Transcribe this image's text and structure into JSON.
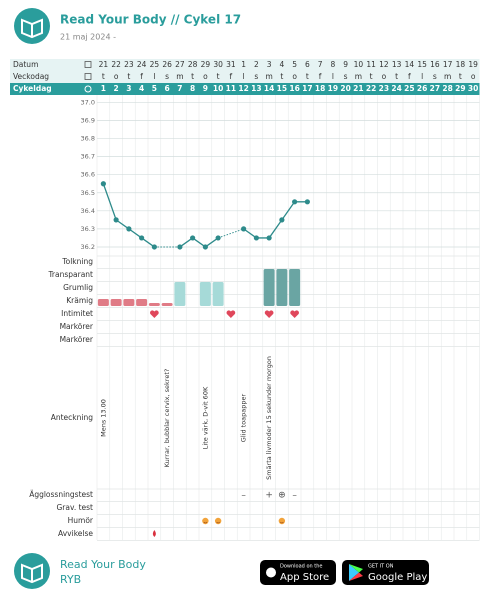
{
  "header": {
    "title": "Read Your Body // Cykel 17",
    "subtitle": "21 maj 2024 -"
  },
  "table": {
    "row_labels": {
      "date": "Datum",
      "weekday": "Veckodag",
      "cycle_day": "Cykeldag"
    },
    "dates": [
      21,
      22,
      23,
      24,
      25,
      26,
      27,
      28,
      29,
      30,
      31,
      1,
      2,
      3,
      4,
      5,
      6,
      7,
      8,
      9,
      10,
      11,
      12,
      13,
      14,
      15,
      16,
      17,
      18,
      19
    ],
    "weekdays": [
      "t",
      "o",
      "t",
      "f",
      "l",
      "s",
      "m",
      "t",
      "o",
      "t",
      "f",
      "l",
      "s",
      "m",
      "t",
      "o",
      "t",
      "f",
      "l",
      "s",
      "m",
      "t",
      "o",
      "t",
      "f",
      "l",
      "s",
      "m",
      "t",
      "o"
    ],
    "cycle_days": [
      1,
      2,
      3,
      4,
      5,
      6,
      7,
      8,
      9,
      10,
      11,
      12,
      13,
      14,
      15,
      16,
      17,
      18,
      19,
      20,
      21,
      22,
      23,
      24,
      25,
      26,
      27,
      28,
      29,
      30
    ]
  },
  "chart_data": {
    "type": "line",
    "values": [
      36.55,
      36.35,
      36.3,
      36.25,
      36.2,
      null,
      36.2,
      36.25,
      36.2,
      36.25,
      null,
      36.3,
      36.25,
      36.25,
      36.35,
      36.45,
      36.45,
      null,
      null,
      null,
      null,
      null,
      null,
      null,
      null,
      null,
      null,
      null,
      null,
      null
    ],
    "color": "#2e8b8b",
    "ylim": [
      36.15,
      37.03
    ],
    "yticks": [
      {
        "value": 37,
        "label": "37.0"
      },
      36.9,
      36.8,
      36.7,
      36.6,
      36.5,
      36.4,
      36.3,
      36.2
    ],
    "grid": true
  },
  "rows": {
    "labels": [
      "Tolkning",
      "Transparant",
      "Grumlig",
      "Krämig",
      "Intimitet",
      "Markörer",
      "Markörer",
      "Anteckning",
      "Ägglossningstest",
      "Grav. test",
      "Humör",
      "Avvikelse"
    ]
  },
  "mucus": {
    "values": [
      1,
      1,
      1,
      1,
      0.5,
      0.5,
      2,
      null,
      2,
      2,
      null,
      null,
      null,
      3,
      3,
      3,
      null,
      null,
      null,
      null,
      null,
      null,
      null,
      null,
      null,
      null,
      null,
      null,
      null,
      null
    ],
    "colors": {
      "0.5": "#e07b86",
      "1": "#e07b86",
      "2": "#a6dad8",
      "3": "#6aa5a3"
    }
  },
  "notes": [
    "Mens 13.00",
    null,
    null,
    null,
    null,
    "Kurrar, bubblar cervix, sekret?",
    null,
    null,
    "Lite värk, D-vit 60K",
    null,
    null,
    "Glid toapapper",
    null,
    "Smärta livmoder 15 sekunder morgon",
    null,
    null,
    null,
    null,
    null,
    null,
    null,
    null,
    null,
    null,
    null,
    null,
    null,
    null,
    null,
    null
  ],
  "ovulation_test": [
    null,
    null,
    null,
    null,
    null,
    null,
    null,
    null,
    null,
    null,
    null,
    "–",
    null,
    "+",
    "⊕",
    "–",
    null,
    null,
    null,
    null,
    null,
    null,
    null,
    null,
    null,
    null,
    null,
    null,
    null,
    null
  ],
  "footer": {
    "name": "Read Your Body",
    "short": "RYB",
    "app_store": {
      "small": "Download on the",
      "big": "App Store"
    },
    "google_play": {
      "small": "GET IT ON",
      "big": "Google Play"
    }
  }
}
